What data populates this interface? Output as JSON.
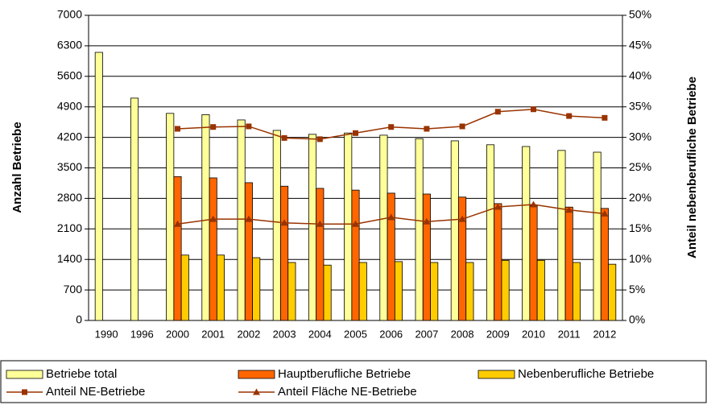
{
  "chart_data": {
    "type": "bar-line",
    "y_label": "Anzahl Betriebe",
    "y2_label": "Anteil nebenberufliche Betriebe",
    "categories": [
      "1990",
      "1996",
      "2000",
      "2001",
      "2002",
      "2003",
      "2004",
      "2005",
      "2006",
      "2007",
      "2008",
      "2009",
      "2010",
      "2011",
      "2012"
    ],
    "ylim": [
      0,
      7000
    ],
    "yticks": [
      0,
      700,
      1400,
      2100,
      2800,
      3500,
      4200,
      4900,
      5600,
      6300,
      7000
    ],
    "y2lim": [
      0,
      50
    ],
    "y2ticks": [
      {
        "value": 0,
        "label": "0%"
      },
      {
        "value": 5,
        "label": "5%"
      },
      {
        "value": 10,
        "label": "10%"
      },
      {
        "value": 15,
        "label": "15%"
      },
      {
        "value": 20,
        "label": "20%"
      },
      {
        "value": 25,
        "label": "25%"
      },
      {
        "value": 30,
        "label": "30%"
      },
      {
        "value": 35,
        "label": "35%"
      },
      {
        "value": 40,
        "label": "40%"
      },
      {
        "value": 45,
        "label": "45%"
      },
      {
        "value": 50,
        "label": "50%"
      }
    ],
    "grid": true,
    "legend": "bottom",
    "series": [
      {
        "name": "Betriebe total",
        "type": "bar",
        "color": "#ffff99",
        "values": [
          6150,
          5100,
          4750,
          4720,
          4600,
          4360,
          4270,
          4300,
          4250,
          4170,
          4120,
          4030,
          3990,
          3900,
          3860
        ]
      },
      {
        "name": "Hauptberufliche Betriebe",
        "type": "bar",
        "color": "#ff6600",
        "values": [
          null,
          null,
          3300,
          3270,
          3160,
          3080,
          3030,
          2990,
          2920,
          2900,
          2830,
          2680,
          2640,
          2600,
          2570
        ]
      },
      {
        "name": "Nebenberufliche Betriebe",
        "type": "bar",
        "color": "#ffcc00",
        "values": [
          null,
          null,
          1500,
          1500,
          1440,
          1330,
          1270,
          1330,
          1350,
          1330,
          1330,
          1380,
          1380,
          1330,
          1290
        ]
      },
      {
        "name": "Anteil NE-Betriebe",
        "type": "line",
        "marker": "square",
        "axis": "y2",
        "color": "#993300",
        "values": [
          null,
          null,
          31.4,
          31.7,
          31.8,
          29.9,
          29.7,
          30.7,
          31.7,
          31.4,
          31.8,
          34.2,
          34.6,
          33.5,
          33.2
        ]
      },
      {
        "name": "Anteil Fläche NE-Betriebe",
        "type": "line",
        "marker": "triangle",
        "axis": "y2",
        "color": "#993300",
        "values": [
          null,
          null,
          15.8,
          16.6,
          16.6,
          16.0,
          15.8,
          15.8,
          16.9,
          16.2,
          16.6,
          18.6,
          19.0,
          18.1,
          17.5
        ]
      }
    ]
  }
}
